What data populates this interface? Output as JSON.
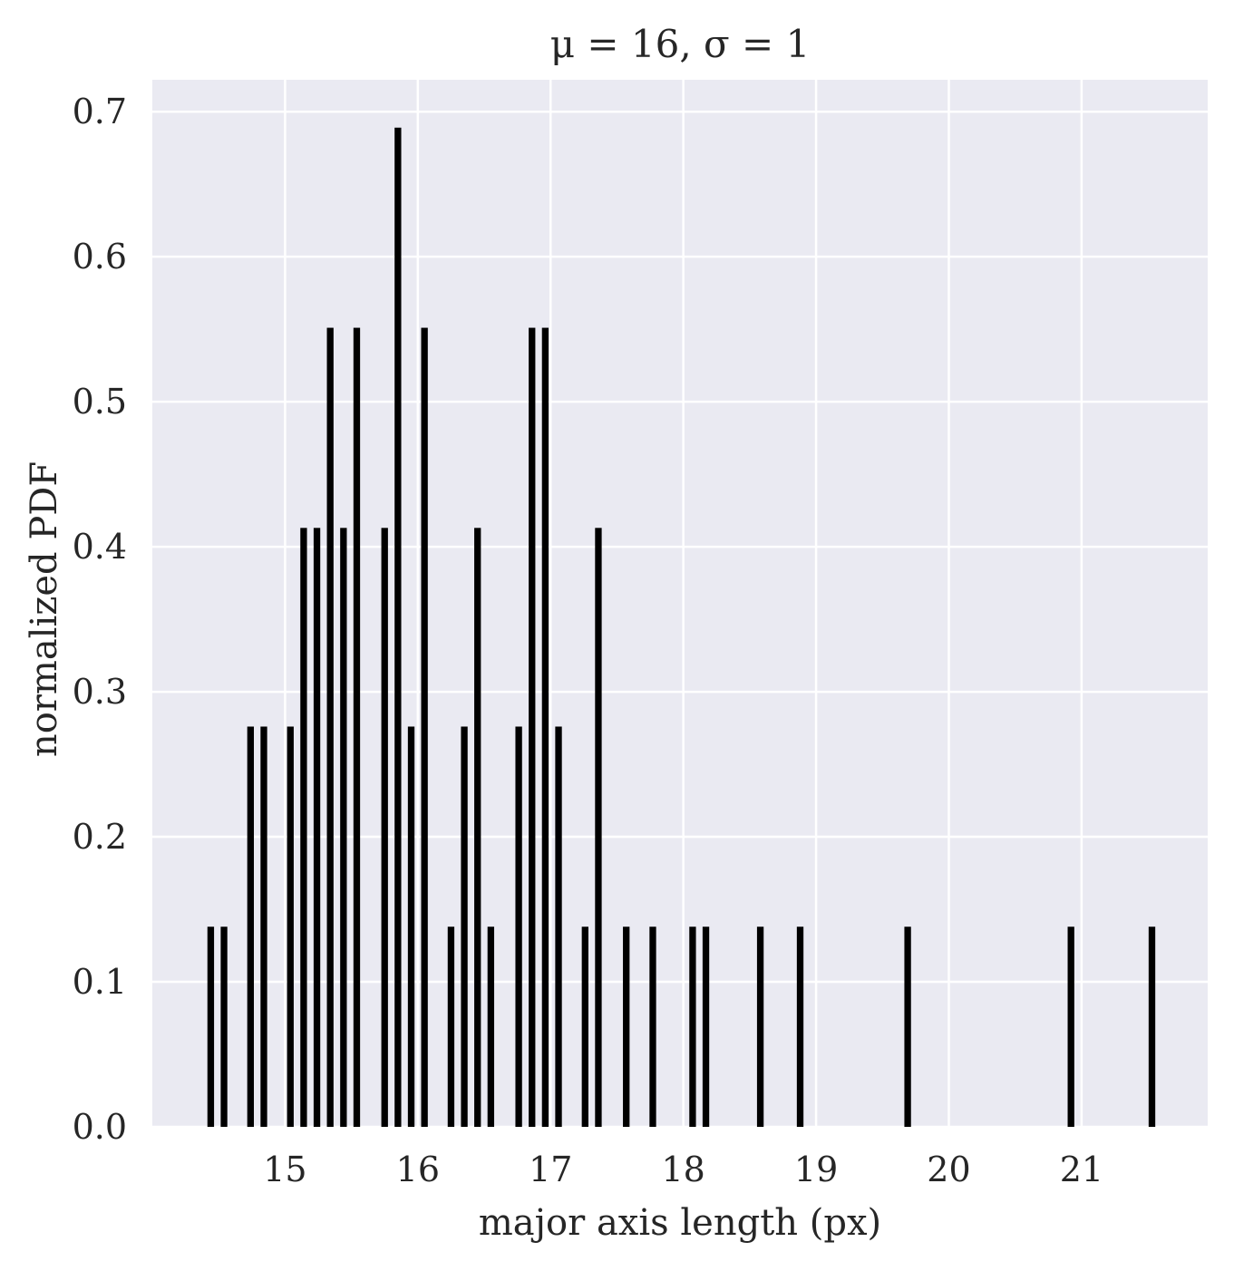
{
  "chart_data": {
    "type": "bar",
    "title": "μ = 16, σ = 1",
    "xlabel": "major axis length (px)",
    "ylabel": "normalized PDF",
    "xlim": [
      14.0,
      21.95
    ],
    "ylim": [
      0.0,
      0.722
    ],
    "xticks": [
      "15",
      "16",
      "17",
      "18",
      "19",
      "20",
      "21"
    ],
    "xtick_values": [
      15,
      16,
      17,
      18,
      19,
      20,
      21
    ],
    "yticks": [
      "0.0",
      "0.1",
      "0.2",
      "0.3",
      "0.4",
      "0.5",
      "0.6",
      "0.7"
    ],
    "ytick_values": [
      0.0,
      0.1,
      0.2,
      0.3,
      0.4,
      0.5,
      0.6,
      0.7
    ],
    "bar_width": 0.05,
    "grid": true,
    "legend": "none",
    "colors": {
      "bars": "#000000",
      "plot_background": "#eaeaf2",
      "grid": "#ffffff",
      "text": "#262626"
    },
    "bars": [
      {
        "x": 14.44,
        "y": 0.138
      },
      {
        "x": 14.54,
        "y": 0.138
      },
      {
        "x": 14.74,
        "y": 0.276
      },
      {
        "x": 14.84,
        "y": 0.276
      },
      {
        "x": 15.04,
        "y": 0.276
      },
      {
        "x": 15.14,
        "y": 0.413
      },
      {
        "x": 15.24,
        "y": 0.413
      },
      {
        "x": 15.34,
        "y": 0.551
      },
      {
        "x": 15.44,
        "y": 0.413
      },
      {
        "x": 15.54,
        "y": 0.551
      },
      {
        "x": 15.75,
        "y": 0.413
      },
      {
        "x": 15.85,
        "y": 0.689
      },
      {
        "x": 15.95,
        "y": 0.276
      },
      {
        "x": 16.05,
        "y": 0.551
      },
      {
        "x": 16.25,
        "y": 0.138
      },
      {
        "x": 16.35,
        "y": 0.276
      },
      {
        "x": 16.45,
        "y": 0.413
      },
      {
        "x": 16.55,
        "y": 0.138
      },
      {
        "x": 16.76,
        "y": 0.276
      },
      {
        "x": 16.86,
        "y": 0.551
      },
      {
        "x": 16.96,
        "y": 0.551
      },
      {
        "x": 17.06,
        "y": 0.276
      },
      {
        "x": 17.26,
        "y": 0.138
      },
      {
        "x": 17.36,
        "y": 0.413
      },
      {
        "x": 17.57,
        "y": 0.138
      },
      {
        "x": 17.77,
        "y": 0.138
      },
      {
        "x": 18.07,
        "y": 0.138
      },
      {
        "x": 18.17,
        "y": 0.138
      },
      {
        "x": 18.58,
        "y": 0.138
      },
      {
        "x": 18.88,
        "y": 0.138
      },
      {
        "x": 19.69,
        "y": 0.138
      },
      {
        "x": 20.92,
        "y": 0.138
      },
      {
        "x": 21.53,
        "y": 0.138
      }
    ]
  }
}
